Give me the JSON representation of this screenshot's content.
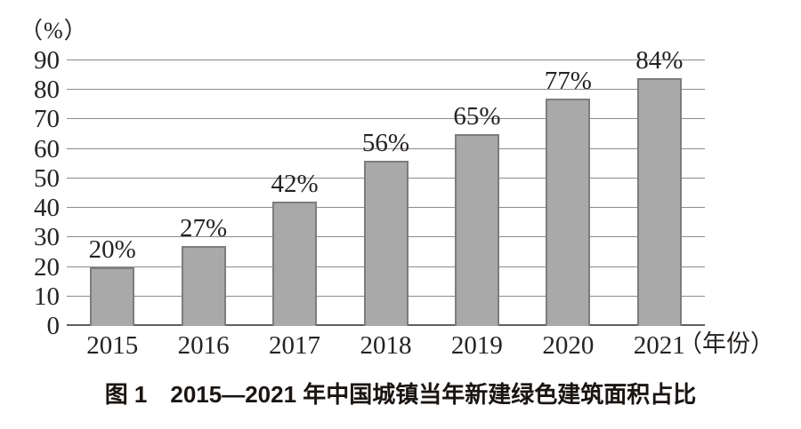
{
  "figure": {
    "caption": "图 1　2015—2021 年中国城镇当年新建绿色建筑面积占比"
  },
  "chart_data": {
    "type": "bar",
    "title": "图 1　2015—2021 年中国城镇当年新建绿色建筑面积占比",
    "ylabel": "（%）",
    "xlabel": "（年份）",
    "categories": [
      "2015",
      "2016",
      "2017",
      "2018",
      "2019",
      "2020",
      "2021"
    ],
    "values": [
      20,
      27,
      42,
      56,
      65,
      77,
      84
    ],
    "bar_labels": [
      "20%",
      "27%",
      "42%",
      "56%",
      "65%",
      "77%",
      "84%"
    ],
    "ylim": [
      0,
      90
    ],
    "yticks": [
      0,
      10,
      20,
      30,
      40,
      50,
      60,
      70,
      80,
      90
    ],
    "grid": true,
    "legend_position": "none",
    "colors": {
      "bar_fill": "#a9a9a9",
      "bar_border": "#7d7d7d",
      "gridline": "#8c8c8c",
      "axis_line": "#5f5f5f",
      "text": "#262220",
      "background": "#ffffff"
    }
  }
}
